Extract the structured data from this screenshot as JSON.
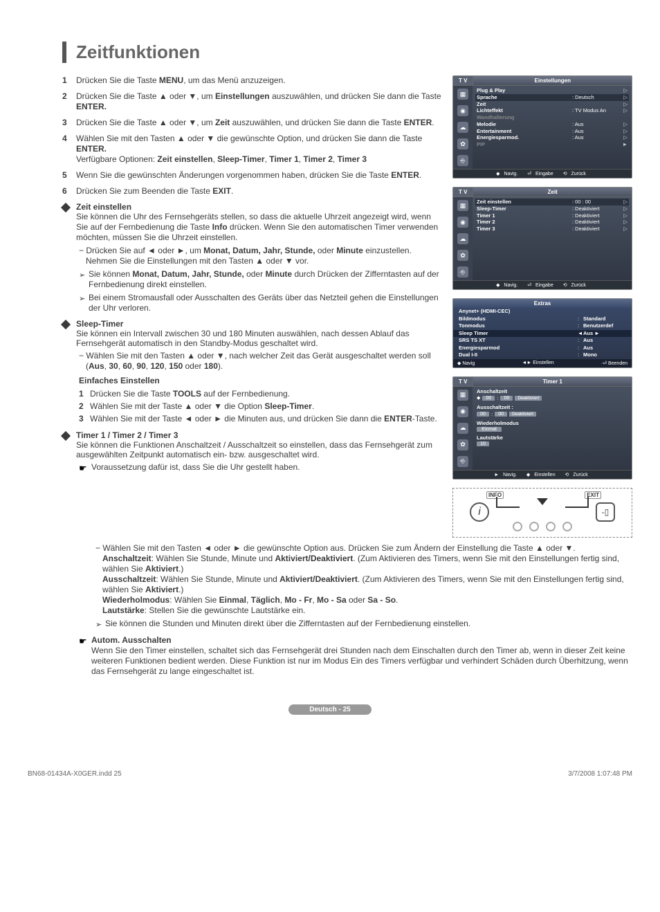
{
  "title": "Zeitfunktionen",
  "steps": [
    {
      "n": "1",
      "parts": [
        "Drücken Sie die Taste ",
        [
          "b",
          "MENU"
        ],
        ", um das Menü anzuzeigen."
      ]
    },
    {
      "n": "2",
      "parts": [
        "Drücken Sie die Taste ▲ oder ▼, um ",
        [
          "b",
          "Einstellungen"
        ],
        " auszuwählen, und drücken Sie dann die Taste ",
        [
          "b",
          "ENTER."
        ]
      ]
    },
    {
      "n": "3",
      "parts": [
        "Drücken Sie die Taste ▲ oder ▼, um ",
        [
          "b",
          "Zeit"
        ],
        " auszuwählen, und drücken Sie dann die Taste ",
        [
          "b",
          "ENTER"
        ],
        "."
      ]
    },
    {
      "n": "4",
      "parts": [
        "Wählen Sie mit den Tasten ▲ oder ▼ die gewünschte Option, und drücken Sie dann die Taste ",
        [
          "b",
          "ENTER."
        ],
        "\nVerfügbare Optionen: ",
        [
          "b",
          "Zeit einstellen"
        ],
        ", ",
        [
          "b",
          "Sleep-Timer"
        ],
        ", ",
        [
          "b",
          "Timer 1"
        ],
        ", ",
        [
          "b",
          "Timer 2"
        ],
        ", ",
        [
          "b",
          "Timer 3"
        ]
      ]
    },
    {
      "n": "5",
      "parts": [
        "Wenn Sie die gewünschten Änderungen vorgenommen haben, drücken Sie die Taste ",
        [
          "b",
          "ENTER"
        ],
        "."
      ]
    },
    {
      "n": "6",
      "parts": [
        "Drücken Sie zum Beenden die Taste ",
        [
          "b",
          "EXIT"
        ],
        "."
      ]
    }
  ],
  "zeit_einstellen": {
    "title": "Zeit einstellen",
    "body": "Sie können die Uhr des Fernsehgeräts stellen, so dass die aktuelle Uhrzeit angezeigt wird, wenn Sie auf der Fernbedienung die Taste Info drücken. Wenn Sie den automatischen Timer verwenden möchten, müssen Sie die Uhrzeit einstellen.",
    "body_bold": "Info",
    "dash": [
      "Drücken Sie auf ◄ oder ►, um ",
      [
        "b",
        "Monat, Datum, Jahr, Stunde,"
      ],
      " oder ",
      [
        "b",
        "Minute"
      ],
      " einzustellen. Nehmen Sie die Einstellungen mit den Tasten ▲ oder ▼ vor."
    ],
    "arrow1": [
      "Sie können ",
      [
        "b",
        "Monat, Datum, Jahr, Stunde,"
      ],
      " oder ",
      [
        "b",
        "Minute"
      ],
      " durch Drücken der Zifferntasten auf der Fernbedienung direkt einstellen."
    ],
    "arrow2": [
      "Bei einem Stromausfall oder Ausschalten des Geräts über das Netzteil gehen die Einstellungen der Uhr verloren."
    ]
  },
  "sleep_timer": {
    "title": "Sleep-Timer",
    "body": "Sie können ein Intervall zwischen 30 und 180 Minuten auswählen, nach dessen Ablauf das Fernsehgerät automatisch in den Standby-Modus geschaltet wird.",
    "dash": [
      "Wählen Sie mit den Tasten ▲ oder ▼, nach welcher Zeit das Gerät ausgeschaltet werden soll (",
      [
        "b",
        "Aus"
      ],
      ", ",
      [
        "b",
        "30"
      ],
      ", ",
      [
        "b",
        "60"
      ],
      ", ",
      [
        "b",
        "90"
      ],
      ", ",
      [
        "b",
        "120"
      ],
      ", ",
      [
        "b",
        "150"
      ],
      " oder ",
      [
        "b",
        "180"
      ],
      ")."
    ],
    "sub_head": "Einfaches Einstellen",
    "nums": [
      [
        "Drücken Sie die Taste ",
        [
          "b",
          "TOOLS"
        ],
        " auf der Fernbedienung."
      ],
      [
        "Wählen Sie mit der Taste ▲ oder ▼ die Option ",
        [
          "b",
          "Sleep-Timer"
        ],
        "."
      ],
      [
        "Wählen Sie mit der Taste ◄ oder ► die Minuten aus, und drücken Sie dann die ",
        [
          "b",
          "ENTER"
        ],
        "-Taste."
      ]
    ]
  },
  "timer123": {
    "title": "Timer 1 / Timer 2 / Timer 3",
    "body": "Sie können die Funktionen Anschaltzeit / Ausschaltzeit so einstellen, dass das Fernsehgerät zum ausgewählten Zeitpunkt automatisch ein- bzw. ausgeschaltet wird.",
    "pointer": "Voraussetzung dafür ist, dass Sie die Uhr gestellt haben."
  },
  "full_dash": {
    "lines": [
      [
        "Wählen Sie mit den Tasten ◄ oder ► die gewünschte Option aus. Drücken Sie zum Ändern der Einstellung die Taste ▲ oder ▼."
      ],
      [
        [
          "b",
          "Anschaltzeit"
        ],
        ": Wählen Sie Stunde, Minute und ",
        [
          "b",
          "Aktiviert/Deaktiviert"
        ],
        ". (Zum Aktivieren des Timers, wenn Sie mit den Einstellungen fertig sind, wählen Sie ",
        [
          "b",
          "Aktiviert"
        ],
        ".)"
      ],
      [
        [
          "b",
          "Ausschaltzeit"
        ],
        ": Wählen Sie Stunde, Minute und ",
        [
          "b",
          "Aktiviert/Deaktiviert"
        ],
        ". (Zum Aktivieren des Timers, wenn Sie mit den Einstellungen fertig sind, wählen Sie ",
        [
          "b",
          "Aktiviert"
        ],
        ".)"
      ],
      [
        [
          "b",
          "Wiederholmodus"
        ],
        ": Wählen Sie ",
        [
          "b",
          "Einmal"
        ],
        ", ",
        [
          "b",
          "Täglich"
        ],
        ", ",
        [
          "b",
          "Mo - Fr"
        ],
        ", ",
        [
          "b",
          "Mo - Sa"
        ],
        " oder ",
        [
          "b",
          "Sa - So"
        ],
        "."
      ],
      [
        [
          "b",
          "Lautstärke"
        ],
        ": Stellen Sie die gewünschte Lautstärke ein."
      ]
    ],
    "arrow": "Sie können die Stunden und Minuten direkt über die Zifferntasten auf der Fernbedienung einstellen."
  },
  "autom": {
    "title": "Autom. Ausschalten",
    "body": "Wenn Sie den Timer einstellen, schaltet sich das Fernsehgerät drei Stunden nach dem Einschalten durch den Timer ab, wenn in dieser Zeit keine weiteren Funktionen bedient werden. Diese Funktion ist nur im Modus Ein des Timers verfügbar und verhindert Schäden durch Überhitzung, wenn das Fernsehgerät zu lange eingeschaltet ist."
  },
  "osd1": {
    "tv": "T V",
    "title": "Einstellungen",
    "rows": [
      {
        "k": "Plug & Play",
        "v": "",
        "ar": "▷"
      },
      {
        "k": "Sprache",
        "v": ": Deutsch",
        "ar": "▷",
        "hl": true
      },
      {
        "k": "Zeit",
        "v": "",
        "ar": "▷"
      },
      {
        "k": "Lichteffekt",
        "v": ": TV Modus An",
        "ar": "▷"
      },
      {
        "k": "Wandhalterung",
        "v": "",
        "ar": "",
        "dim": true
      },
      {
        "k": "Melodie",
        "v": ": Aus",
        "ar": "▷"
      },
      {
        "k": "Entertainment",
        "v": ": Aus",
        "ar": "▷"
      },
      {
        "k": "Energiesparmod.",
        "v": ": Aus",
        "ar": "▷"
      },
      {
        "k": "PIP",
        "v": "",
        "ar": "►",
        "dim": true
      }
    ],
    "footer": {
      "nav": "Navig.",
      "enter": "Eingabe",
      "back": "Zurück"
    }
  },
  "osd2": {
    "tv": "T V",
    "title": "Zeit",
    "rows": [
      {
        "k": "Zeit einstellen",
        "v": ": 00 : 00",
        "ar": "▷",
        "hl": true
      },
      {
        "k": "Sleep-Timer",
        "v": ": Deaktiviert",
        "ar": "▷"
      },
      {
        "k": "Timer 1",
        "v": ": Deaktiviert",
        "ar": "▷"
      },
      {
        "k": "Timer 2",
        "v": ": Deaktiviert",
        "ar": "▷"
      },
      {
        "k": "Timer 3",
        "v": ": Deaktiviert",
        "ar": "▷"
      }
    ],
    "footer": {
      "nav": "Navig.",
      "enter": "Eingabe",
      "back": "Zurück"
    }
  },
  "osd3": {
    "title": "Extras",
    "rows": [
      {
        "k": "Anynet+ (HDMI-CEC)",
        "c": "",
        "v": ""
      },
      {
        "k": "Bildmodus",
        "c": ":",
        "v": "Standard"
      },
      {
        "k": "Tonmodus",
        "c": ":",
        "v": "Benutzerdef"
      },
      {
        "k": "Sleep Timer",
        "c": "◄",
        "v": "Aus     ►",
        "hl": true
      },
      {
        "k": "SRS TS XT",
        "c": ":",
        "v": "Aus"
      },
      {
        "k": "Energiesparmod",
        "c": ":",
        "v": "Aus"
      },
      {
        "k": "Dual I-II",
        "c": ":",
        "v": "Mono"
      }
    ],
    "footer": {
      "nav": "Navig",
      "adj": "Einstellen",
      "exit": "Beenden"
    }
  },
  "osd4": {
    "tv": "T V",
    "title": "Timer 1",
    "an_label": "Anschaltzeit",
    "aus_label": "Ausschaltzeit :",
    "wied_label": "Wiederholmodus",
    "wied_val": "Einmal",
    "laut_label": "Lautstärke",
    "laut_val": "10",
    "h": "00",
    "m": "00",
    "state": "Deaktiviert",
    "footer": {
      "nav": "Navig.",
      "adj": "Einstellen",
      "back": "Zurück"
    }
  },
  "remote": {
    "info": "INFO",
    "exit": "EXIT"
  },
  "page_num": "Deutsch - 25",
  "doc_footer_left": "BN68-01434A-X0GER.indd   25",
  "doc_footer_right": "3/7/2008   1:07:48 PM"
}
